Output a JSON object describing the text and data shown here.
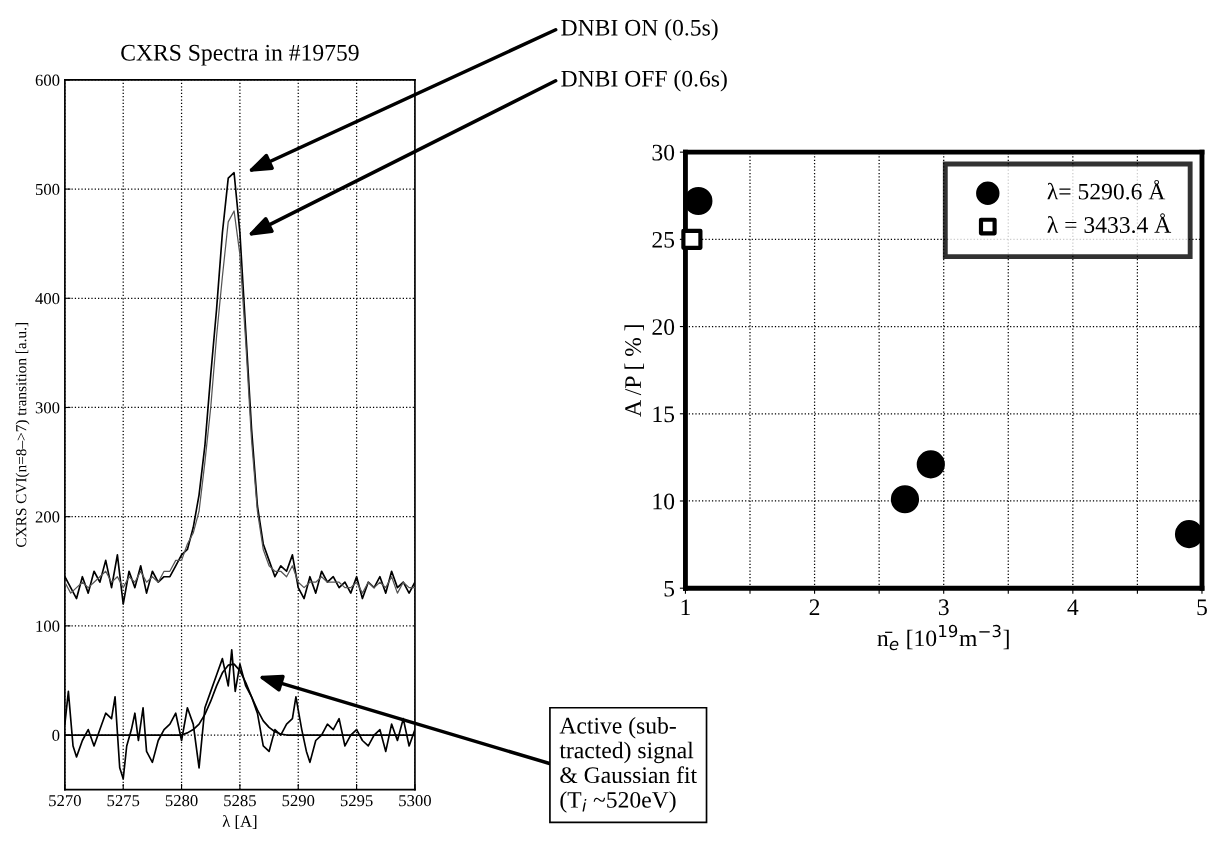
{
  "chart_data": [
    {
      "type": "line",
      "title": "CXRS Spectra in #19759",
      "xlabel": "λ [A]",
      "ylabel": "CXRS CVI(n=8–>7) transition [a.u.]",
      "xlim": [
        5270,
        5300
      ],
      "xticks": [
        5270,
        5275,
        5280,
        5285,
        5290,
        5295,
        5300
      ],
      "ylim": [
        -50,
        600
      ],
      "yticks": [
        0,
        100,
        200,
        300,
        400,
        500,
        600
      ],
      "grid": true,
      "legend": false,
      "line_style": "solid",
      "marker": "none",
      "series": [
        {
          "color": "#000000",
          "x": [
            5270,
            5270.5,
            5271,
            5271.5,
            5272,
            5272.5,
            5273,
            5273.5,
            5274,
            5274.5,
            5275,
            5275.5,
            5276,
            5276.5,
            5277,
            5277.5,
            5278,
            5278.5,
            5279,
            5279.5,
            5280,
            5280.5,
            5281,
            5281.5,
            5282,
            5282.5,
            5283,
            5283.5,
            5284,
            5284.5,
            5285,
            5285.5,
            5286,
            5286.5,
            5287,
            5287.5,
            5288,
            5288.5,
            5289,
            5289.5,
            5290,
            5290.5,
            5291,
            5291.5,
            5292,
            5292.5,
            5293,
            5293.5,
            5294,
            5294.5,
            5295,
            5295.5,
            5296,
            5296.5,
            5297,
            5297.5,
            5298,
            5298.5,
            5299,
            5299.5,
            5300
          ],
          "values": [
            145,
            135,
            125,
            145,
            130,
            150,
            140,
            160,
            135,
            165,
            120,
            150,
            135,
            155,
            130,
            150,
            140,
            145,
            145,
            155,
            165,
            170,
            190,
            220,
            265,
            330,
            390,
            460,
            510,
            515,
            460,
            370,
            280,
            210,
            175,
            160,
            145,
            155,
            150,
            165,
            135,
            125,
            145,
            130,
            150,
            140,
            145,
            135,
            140,
            130,
            145,
            125,
            140,
            135,
            145,
            130,
            150,
            135,
            140,
            130,
            140
          ]
        },
        {
          "color": "#555555",
          "x": [
            5270,
            5270.5,
            5271,
            5271.5,
            5272,
            5272.5,
            5273,
            5273.5,
            5274,
            5274.5,
            5275,
            5275.5,
            5276,
            5276.5,
            5277,
            5277.5,
            5278,
            5278.5,
            5279,
            5279.5,
            5280,
            5280.5,
            5281,
            5281.5,
            5282,
            5282.5,
            5283,
            5283.5,
            5284,
            5284.5,
            5285,
            5285.5,
            5286,
            5286.5,
            5287,
            5287.5,
            5288,
            5288.5,
            5289,
            5289.5,
            5290,
            5290.5,
            5291,
            5291.5,
            5292,
            5292.5,
            5293,
            5293.5,
            5294,
            5294.5,
            5295,
            5295.5,
            5296,
            5296.5,
            5297,
            5297.5,
            5298,
            5298.5,
            5299,
            5299.5,
            5300
          ],
          "values": [
            140,
            130,
            135,
            140,
            135,
            140,
            145,
            150,
            140,
            145,
            135,
            145,
            140,
            150,
            140,
            145,
            140,
            150,
            150,
            160,
            160,
            175,
            185,
            205,
            250,
            300,
            365,
            420,
            470,
            480,
            440,
            360,
            270,
            205,
            170,
            155,
            150,
            150,
            145,
            155,
            140,
            135,
            140,
            140,
            145,
            140,
            140,
            140,
            135,
            135,
            140,
            130,
            140,
            135,
            140,
            135,
            145,
            130,
            140,
            135,
            135
          ]
        },
        {
          "color": "#000000",
          "x": [
            5270,
            5270.3,
            5270.7,
            5271,
            5271.5,
            5272,
            5272.5,
            5273,
            5273.5,
            5274,
            5274.3,
            5274.7,
            5275,
            5275.3,
            5275.7,
            5276,
            5276.3,
            5276.7,
            5277,
            5277.5,
            5278,
            5278.5,
            5279,
            5279.5,
            5280,
            5280.5,
            5281,
            5281.5,
            5282,
            5282.5,
            5283,
            5283.5,
            5284,
            5284.3,
            5284.6,
            5285,
            5285.5,
            5286,
            5286.5,
            5287,
            5287.5,
            5288,
            5288.5,
            5289,
            5289.5,
            5289.8,
            5290.3,
            5290.7,
            5291,
            5291.5,
            5292,
            5292.5,
            5293,
            5293.5,
            5294,
            5294.5,
            5295,
            5295.5,
            5296,
            5296.5,
            5297,
            5297.5,
            5298,
            5298.5,
            5299,
            5299.5,
            5300
          ],
          "values": [
            10,
            40,
            -10,
            -20,
            -5,
            5,
            -10,
            5,
            20,
            15,
            35,
            -30,
            -40,
            -10,
            5,
            20,
            -5,
            25,
            -15,
            -25,
            -5,
            5,
            10,
            20,
            -5,
            25,
            10,
            -30,
            25,
            40,
            55,
            70,
            45,
            78,
            40,
            65,
            45,
            35,
            20,
            -10,
            -15,
            5,
            0,
            10,
            15,
            35,
            5,
            -15,
            -25,
            -5,
            0,
            10,
            5,
            15,
            -10,
            0,
            5,
            -5,
            -10,
            0,
            5,
            -15,
            10,
            -5,
            15,
            -10,
            5
          ]
        },
        {
          "color": "#000000",
          "x": [
            5270,
            5280,
            5280.5,
            5281,
            5281.5,
            5282,
            5282.5,
            5283,
            5283.5,
            5284,
            5284.5,
            5285,
            5285.5,
            5286,
            5286.5,
            5287,
            5287.5,
            5288,
            5288.5,
            5289,
            5300
          ],
          "values": [
            0,
            0,
            2,
            5,
            10,
            19,
            31,
            45,
            57,
            64,
            65,
            59,
            48,
            35,
            23,
            13,
            7,
            3,
            1,
            0,
            0
          ]
        }
      ],
      "annotations": [
        "DNBI ON (0.5s)",
        "DNBI OFF (0.6s)",
        "Active (sub-\ntracted) signal\n& Gaussian fit\n(T$_{i}$ ~520eV)"
      ]
    },
    {
      "type": "scatter",
      "xlabel": "n̄$_{e}$ [10$^{19}$m$^{−3}$]",
      "ylabel": "A /P [ % ]",
      "xlim": [
        1,
        5
      ],
      "xticks": [
        1,
        {
          "value": 1.5,
          "label": null
        },
        2,
        {
          "value": 2.5,
          "label": null
        },
        3,
        {
          "value": 3.5,
          "label": null
        },
        4,
        {
          "value": 4.5,
          "label": null
        },
        5
      ],
      "ylim": [
        5,
        30
      ],
      "yticks": [
        5,
        10,
        15,
        20,
        25,
        30
      ],
      "grid": true,
      "legend": "top right",
      "series": [
        {
          "name": "λ= 5290.6 Å",
          "color": "#000000",
          "marker": "circle",
          "x": [
            1.1,
            2.7,
            2.9,
            4.9
          ],
          "values": [
            27.2,
            10.1,
            12.1,
            8.1
          ]
        },
        {
          "name": "λ = 3433.4 Å",
          "color": "#000000",
          "marker": "square",
          "x": [
            1.05
          ],
          "values": [
            25
          ]
        }
      ]
    }
  ]
}
